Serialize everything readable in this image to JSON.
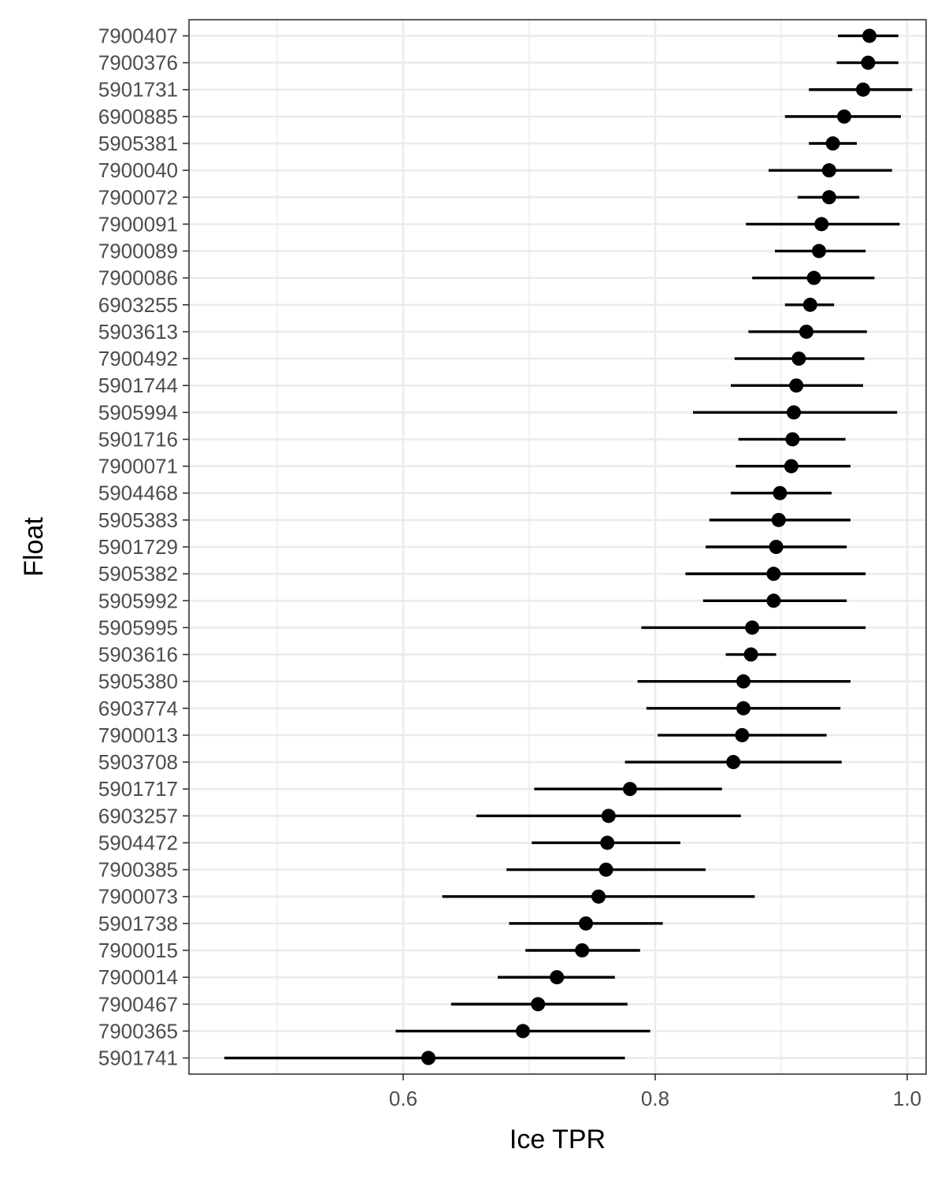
{
  "chart_data": {
    "type": "scatter",
    "subtype": "point-range",
    "title": "",
    "xlabel": "Ice TPR",
    "ylabel": "Float",
    "xlim": [
      0.43,
      1.015
    ],
    "xticks": [
      0.6,
      0.8,
      1.0
    ],
    "xtick_labels": [
      "0.6",
      "0.8",
      "1.0"
    ],
    "grid": true,
    "legend": "none",
    "colors": {
      "point": "#000000",
      "grid": "#ebebeb",
      "border": "#333333",
      "tick_label": "#4d4d4d"
    },
    "categories": [
      "7900407",
      "7900376",
      "5901731",
      "6900885",
      "5905381",
      "7900040",
      "7900072",
      "7900091",
      "7900089",
      "7900086",
      "6903255",
      "5903613",
      "7900492",
      "5901744",
      "5905994",
      "5901716",
      "7900071",
      "5904468",
      "5905383",
      "5901729",
      "5905382",
      "5905992",
      "5905995",
      "5903616",
      "5905380",
      "6903774",
      "7900013",
      "5903708",
      "5901717",
      "6903257",
      "5904472",
      "7900385",
      "7900073",
      "5901738",
      "7900015",
      "7900014",
      "7900467",
      "7900365",
      "5901741"
    ],
    "series": [
      {
        "values": [
          0.97,
          0.969,
          0.965,
          0.95,
          0.941,
          0.938,
          0.938,
          0.932,
          0.93,
          0.926,
          0.923,
          0.92,
          0.914,
          0.912,
          0.91,
          0.909,
          0.908,
          0.899,
          0.898,
          0.896,
          0.894,
          0.894,
          0.877,
          0.876,
          0.87,
          0.87,
          0.869,
          0.862,
          0.78,
          0.763,
          0.762,
          0.761,
          0.755,
          0.745,
          0.742,
          0.722,
          0.707,
          0.695,
          0.62
        ],
        "lower": [
          0.945,
          0.944,
          0.922,
          0.903,
          0.922,
          0.89,
          0.913,
          0.872,
          0.895,
          0.877,
          0.903,
          0.874,
          0.863,
          0.86,
          0.83,
          0.866,
          0.864,
          0.86,
          0.843,
          0.84,
          0.824,
          0.838,
          0.789,
          0.856,
          0.786,
          0.793,
          0.802,
          0.776,
          0.704,
          0.658,
          0.702,
          0.682,
          0.631,
          0.684,
          0.697,
          0.675,
          0.638,
          0.594,
          0.458
        ],
        "upper": [
          0.993,
          0.993,
          1.004,
          0.995,
          0.96,
          0.988,
          0.962,
          0.994,
          0.967,
          0.974,
          0.942,
          0.968,
          0.966,
          0.965,
          0.992,
          0.951,
          0.955,
          0.94,
          0.955,
          0.952,
          0.967,
          0.952,
          0.967,
          0.896,
          0.955,
          0.947,
          0.936,
          0.948,
          0.853,
          0.868,
          0.82,
          0.84,
          0.879,
          0.806,
          0.788,
          0.768,
          0.778,
          0.796,
          0.776
        ]
      }
    ]
  }
}
